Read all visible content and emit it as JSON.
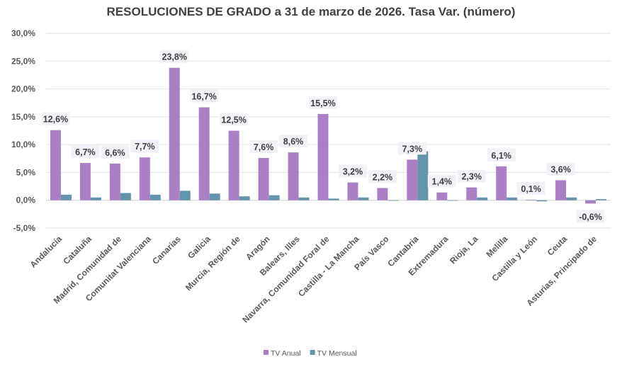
{
  "chart_data": {
    "type": "bar",
    "title": "RESOLUCIONES DE GRADO a 31 de marzo de 2026. Tasa Var. (número)",
    "categories": [
      "Andalucía",
      "Cataluña",
      "Madrid, Comunidad de",
      "Comunitat Valenciana",
      "Canarias",
      "Galicia",
      "Murcia, Región de",
      "Aragón",
      "Balears, Illes",
      "Navarra, Comunidad Foral de",
      "Castilla - La Mancha",
      "País Vasco",
      "Cantabria",
      "Extremadura",
      "Rioja, La",
      "Melilla",
      "Castilla y León",
      "Ceuta",
      "Asturias, Principado de"
    ],
    "series": [
      {
        "name": "TV Anual",
        "color": "#ab7fc6",
        "values": [
          12.6,
          6.7,
          6.6,
          7.7,
          23.8,
          16.7,
          12.5,
          7.6,
          8.6,
          15.5,
          3.2,
          2.2,
          7.3,
          1.4,
          2.3,
          6.1,
          0.1,
          3.6,
          -0.6
        ],
        "labels": [
          "12,6%",
          "6,7%",
          "6,6%",
          "7,7%",
          "23,8%",
          "16,7%",
          "12,5%",
          "7,6%",
          "8,6%",
          "15,5%",
          "3,2%",
          "2,2%",
          "7,3%",
          "1,4%",
          "2,3%",
          "6,1%",
          "0,1%",
          "3,6%",
          "-0,6%"
        ]
      },
      {
        "name": "TV Mensual",
        "color": "#6494ad",
        "values": [
          1.0,
          0.5,
          1.3,
          1.0,
          1.7,
          1.2,
          0.7,
          0.9,
          0.5,
          0.3,
          0.5,
          0.0,
          8.8,
          0.0,
          0.5,
          0.5,
          -0.2,
          0.5,
          0.2
        ]
      }
    ],
    "ylim": [
      -5,
      30
    ],
    "yticks": [
      "-5,0%",
      "0,0%",
      "5,0%",
      "10,0%",
      "15,0%",
      "20,0%",
      "25,0%",
      "30,0%"
    ],
    "ytick_values": [
      -5,
      0,
      5,
      10,
      15,
      20,
      25,
      30
    ],
    "grid": true,
    "legend": "bottom"
  }
}
